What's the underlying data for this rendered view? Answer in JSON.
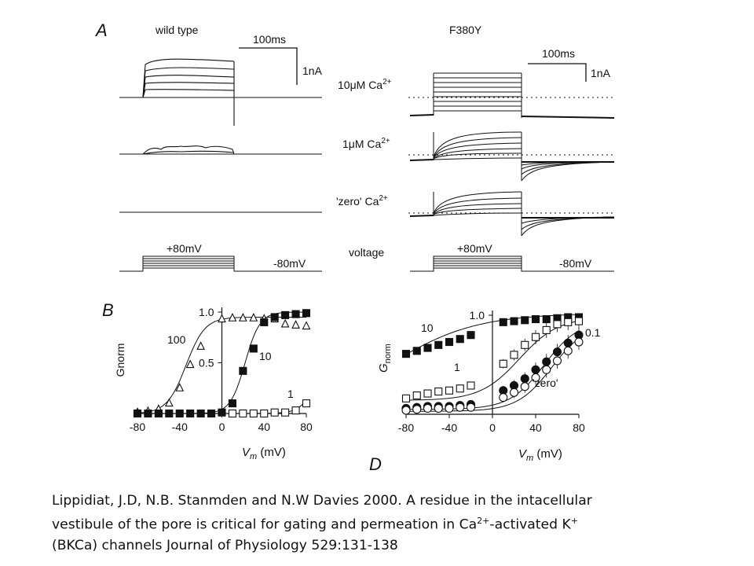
{
  "figure": {
    "panel_A": {
      "label": "A",
      "wild_type": {
        "title": "wild type",
        "time_scale": "100ms",
        "current_scale": "1nA"
      },
      "f380y": {
        "title": "F380Y",
        "time_scale": "100ms",
        "current_scale": "1nA"
      },
      "rows": [
        {
          "ca": "10",
          "unit": "μM Ca",
          "sup": "2+"
        },
        {
          "ca": "1",
          "unit": "μM Ca",
          "sup": "2+"
        },
        {
          "ca": "'zero' Ca",
          "unit": "",
          "sup": "2+"
        }
      ],
      "voltage_label": "voltage",
      "v_step": "+80mV",
      "v_hold": "-80mV"
    },
    "panel_B": {
      "label": "B"
    },
    "panel_D": {
      "label": "D"
    }
  },
  "chart_data": [
    {
      "type": "scatter",
      "panel": "B",
      "ylabel": "Gnorm",
      "xlabel_var": "V",
      "xlabel_sub": "m",
      "xlabel_unit": "(mV)",
      "xlim": [
        -80,
        80
      ],
      "ylim": [
        0,
        1
      ],
      "xticks": [
        "-80",
        "-40",
        "0",
        "40",
        "80"
      ],
      "yticks": [
        "1.0",
        "0.5"
      ],
      "series": [
        {
          "name": "100",
          "marker": "triangle-open",
          "x": [
            -80,
            -70,
            -60,
            -50,
            -40,
            -30,
            -20,
            0,
            10,
            20,
            30,
            40,
            50,
            60,
            70,
            80
          ],
          "y": [
            0.01,
            0.02,
            0.04,
            0.1,
            0.25,
            0.48,
            0.66,
            0.93,
            0.94,
            0.94,
            0.94,
            0.93,
            0.93,
            0.88,
            0.87,
            0.86
          ]
        },
        {
          "name": "10",
          "marker": "square-filled",
          "x": [
            -80,
            -70,
            -60,
            -50,
            -40,
            -30,
            -20,
            -10,
            0,
            10,
            20,
            30,
            40,
            50,
            60,
            70,
            80
          ],
          "y": [
            0,
            0,
            0,
            0,
            0,
            0,
            0,
            0,
            0.01,
            0.1,
            0.42,
            0.64,
            0.9,
            0.95,
            0.97,
            0.98,
            0.99
          ]
        },
        {
          "name": "1",
          "marker": "square-open",
          "x": [
            10,
            20,
            30,
            40,
            50,
            60,
            70,
            80
          ],
          "y": [
            0,
            0,
            0,
            0,
            0.01,
            0.01,
            0.03,
            0.1
          ]
        }
      ]
    },
    {
      "type": "scatter",
      "panel": "D",
      "ylabel_var": "G",
      "ylabel_sub": "norm",
      "xlabel_var": "V",
      "xlabel_sub": "m",
      "xlabel_unit": "(mV)",
      "xlim": [
        -80,
        80
      ],
      "ylim": [
        0,
        1
      ],
      "xticks": [
        "-80",
        "-40",
        "0",
        "40",
        "80"
      ],
      "yticks": [
        "1.0"
      ],
      "series": [
        {
          "name": "10",
          "marker": "square-filled",
          "x": [
            -80,
            -70,
            -60,
            -50,
            -40,
            -30,
            -20,
            10,
            20,
            30,
            40,
            50,
            60,
            70,
            80
          ],
          "y": [
            0.61,
            0.64,
            0.67,
            0.7,
            0.73,
            0.76,
            0.8,
            0.93,
            0.94,
            0.95,
            0.96,
            0.96,
            0.97,
            0.98,
            0.98
          ]
        },
        {
          "name": "1",
          "marker": "square-open",
          "x": [
            -80,
            -70,
            -60,
            -50,
            -40,
            -30,
            -20,
            10,
            20,
            30,
            40,
            50,
            60,
            70,
            80
          ],
          "y": [
            0.16,
            0.19,
            0.21,
            0.23,
            0.24,
            0.26,
            0.29,
            0.51,
            0.6,
            0.7,
            0.78,
            0.85,
            0.91,
            0.93,
            0.94
          ]
        },
        {
          "name": "0.1",
          "marker": "circle-filled",
          "x": [
            -80,
            -70,
            -60,
            -50,
            -40,
            -30,
            -20,
            10,
            20,
            30,
            40,
            50,
            60,
            70,
            80
          ],
          "y": [
            0.06,
            0.07,
            0.08,
            0.08,
            0.08,
            0.09,
            0.1,
            0.24,
            0.29,
            0.36,
            0.45,
            0.53,
            0.63,
            0.72,
            0.8
          ]
        },
        {
          "name": "'zero'",
          "marker": "circle-open",
          "x": [
            -80,
            -70,
            -60,
            -50,
            -40,
            -30,
            -20,
            10,
            20,
            30,
            40,
            50,
            60,
            70,
            80
          ],
          "y": [
            0.04,
            0.05,
            0.06,
            0.06,
            0.06,
            0.07,
            0.07,
            0.17,
            0.22,
            0.28,
            0.37,
            0.45,
            0.54,
            0.64,
            0.73
          ]
        }
      ]
    }
  ],
  "caption": {
    "line1": "Lippidiat, J.D, N.B. Stanmden and N.W Davies 2000. A residue in the intacellular",
    "line2_a": "vestibule of the pore is critical for gating and permeation in Ca",
    "line2_sup1": "2+",
    "line2_b": "-activated K",
    "line2_sup2": "+",
    "line3": "(BKCa) channels Journal of Physiology 529:131-138"
  }
}
